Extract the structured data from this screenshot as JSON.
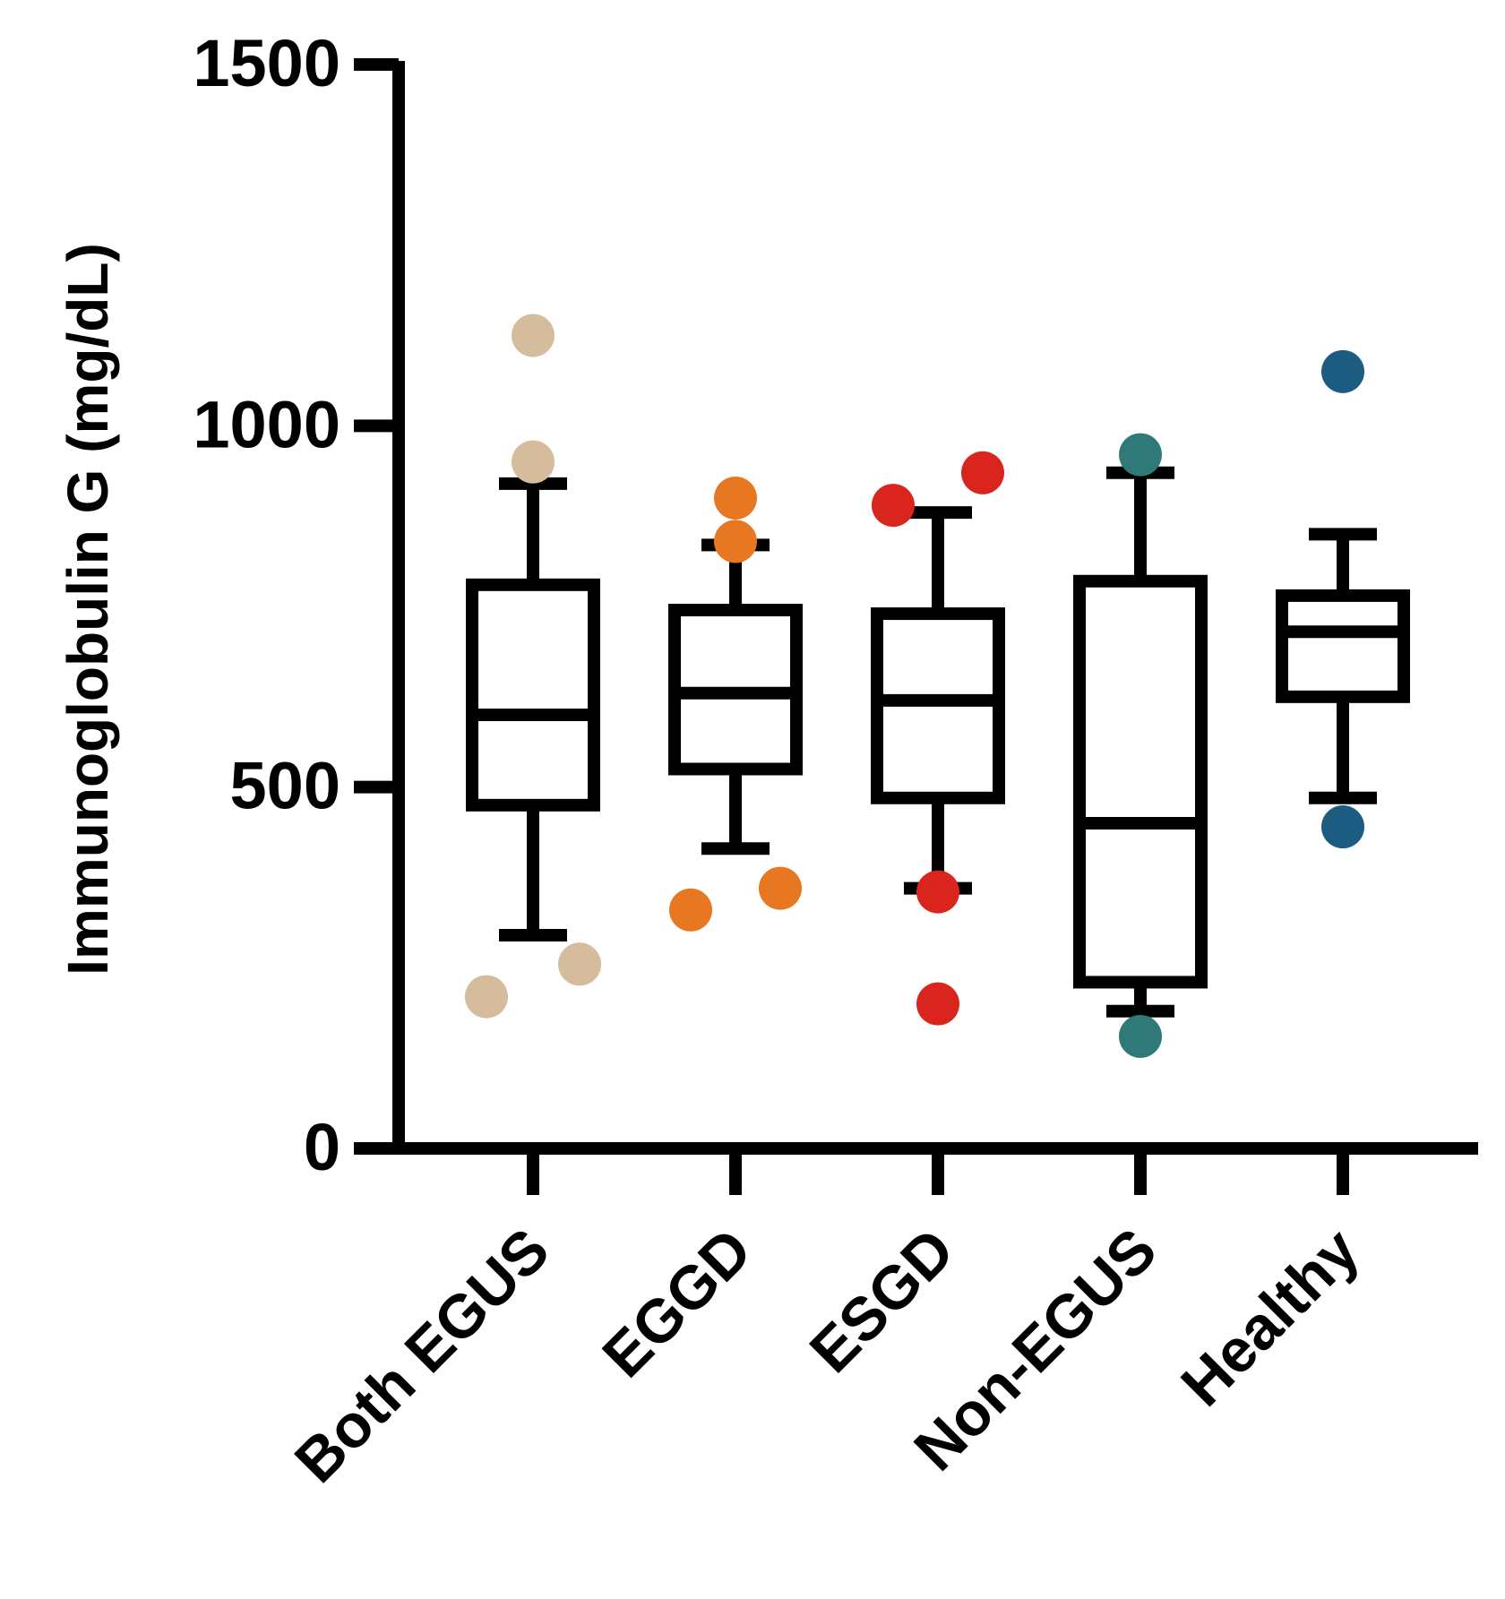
{
  "chart_data": {
    "type": "box",
    "ylabel": "Immunoglobulin G (mg/dL)",
    "xlabel": "",
    "ylim": [
      0,
      1500
    ],
    "yticks": [
      "0",
      "500",
      "1000",
      "1500"
    ],
    "categories": [
      "Both EGUS",
      "EGGD",
      "ESGD",
      "Non-EGUS",
      "Healthy"
    ],
    "colors": {
      "axis": "#000000",
      "box_stroke": "#000000",
      "background": "#ffffff"
    },
    "boxes": [
      {
        "name": "Both EGUS",
        "whisker_low": 295,
        "q1": 475,
        "median": 600,
        "q3": 780,
        "whisker_high": 920,
        "color": "#D4BC9C",
        "outliers": [
          1125,
          950,
          255,
          210
        ]
      },
      {
        "name": "EGGD",
        "whisker_low": 415,
        "q1": 525,
        "median": 630,
        "q3": 745,
        "whisker_high": 835,
        "color": "#E87722",
        "outliers": [
          900,
          840,
          330,
          360
        ]
      },
      {
        "name": "ESGD",
        "whisker_low": 360,
        "q1": 485,
        "median": 620,
        "q3": 740,
        "whisker_high": 880,
        "color": "#D9251D",
        "outliers": [
          890,
          935,
          355,
          200
        ]
      },
      {
        "name": "Non-EGUS",
        "whisker_low": 190,
        "q1": 230,
        "median": 450,
        "q3": 785,
        "whisker_high": 935,
        "color": "#2F7A78",
        "outliers": [
          960,
          155
        ]
      },
      {
        "name": "Healthy",
        "whisker_low": 485,
        "q1": 625,
        "median": 715,
        "q3": 765,
        "whisker_high": 850,
        "color": "#1C5C80",
        "outliers": [
          1075,
          445
        ]
      }
    ]
  }
}
